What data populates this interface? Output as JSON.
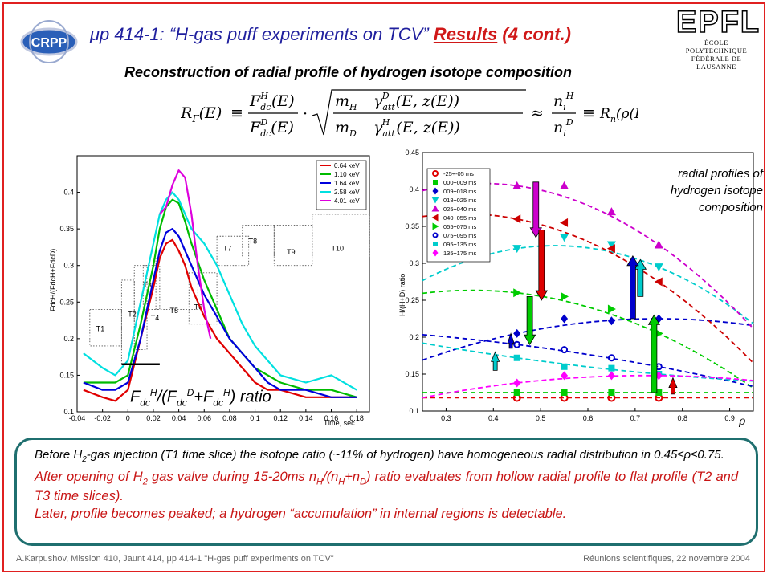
{
  "header": {
    "title_prefix": "μp 414-1: “H-gas puff experiments on TCV”",
    "title_results": "Results",
    "title_suffix": "(4 cont.)",
    "subtitle": "Reconstruction of radial profile of hydrogen isotope composition",
    "logo_crpp": "CRPP",
    "logo_epfl": "EPFL",
    "logo_epfl_sub1": "ÉCOLE POLYTECHNIQUE",
    "logo_epfl_sub2": "FÉDÉRALE DE LAUSANNE"
  },
  "formula": {
    "lhs": "RΓ(E) ≡",
    "middle": "· √( mH γattD(E,z(E)) / mD γattH(E,z(E)) ) ≈",
    "rhs": "≡ Rn(ρ(E))"
  },
  "colors": {
    "title": "#1f1f9e",
    "accent_red": "#d01818",
    "note_border": "#1f6f6f",
    "frame": "#e02020"
  },
  "chart_data": [
    {
      "type": "line",
      "title": "",
      "xlabel": "Time, sec",
      "ylabel": "FdcH/(FdcH+FdcD)",
      "xlim": [
        -0.04,
        0.19
      ],
      "ylim": [
        0.1,
        0.45
      ],
      "xticks": [
        "-0.04",
        "-0.02",
        "0",
        "0.02",
        "0.04",
        "0.06",
        "0.08",
        "0.1",
        "0.12",
        "0.14",
        "0.16",
        "0.18"
      ],
      "yticks": [
        "0.1",
        "0.15",
        "0.2",
        "0.25",
        "0.3",
        "0.35",
        "0.4"
      ],
      "overlay_label": "FdcH/(FdcD+FdcH) ratio",
      "time_slices": [
        "T1",
        "T2",
        "T3",
        "T4",
        "T5",
        "T6",
        "T7",
        "T8",
        "T9",
        "T10"
      ],
      "series": [
        {
          "name": "0.64 keV",
          "color": "#e00000",
          "x": [
            -0.035,
            -0.02,
            -0.01,
            0,
            0.01,
            0.02,
            0.025,
            0.03,
            0.035,
            0.04,
            0.045,
            0.05,
            0.06,
            0.07,
            0.08,
            0.09,
            0.1,
            0.11,
            0.12,
            0.14,
            0.16,
            0.18
          ],
          "values": [
            0.13,
            0.12,
            0.115,
            0.13,
            0.2,
            0.27,
            0.31,
            0.33,
            0.335,
            0.32,
            0.3,
            0.27,
            0.23,
            0.2,
            0.18,
            0.16,
            0.14,
            0.13,
            0.13,
            0.12,
            0.12,
            0.12
          ]
        },
        {
          "name": "1.10 keV",
          "color": "#00bb00",
          "x": [
            -0.035,
            -0.02,
            -0.01,
            0,
            0.01,
            0.02,
            0.025,
            0.03,
            0.035,
            0.04,
            0.045,
            0.05,
            0.06,
            0.07,
            0.08,
            0.09,
            0.1,
            0.11,
            0.12,
            0.14,
            0.16,
            0.18
          ],
          "values": [
            0.14,
            0.14,
            0.14,
            0.15,
            0.22,
            0.3,
            0.35,
            0.38,
            0.39,
            0.385,
            0.36,
            0.33,
            0.28,
            0.24,
            0.2,
            0.18,
            0.16,
            0.15,
            0.14,
            0.13,
            0.13,
            0.12
          ]
        },
        {
          "name": "1.64 keV",
          "color": "#0000dd",
          "x": [
            -0.035,
            -0.02,
            -0.01,
            0,
            0.01,
            0.02,
            0.025,
            0.03,
            0.035,
            0.04,
            0.045,
            0.05,
            0.06,
            0.07,
            0.08,
            0.09,
            0.1,
            0.11,
            0.12,
            0.14,
            0.16,
            0.18
          ],
          "values": [
            0.14,
            0.13,
            0.13,
            0.14,
            0.2,
            0.28,
            0.32,
            0.345,
            0.35,
            0.34,
            0.32,
            0.3,
            0.26,
            0.23,
            0.2,
            0.18,
            0.16,
            0.14,
            0.13,
            0.13,
            0.12,
            0.12
          ]
        },
        {
          "name": "2.58 keV",
          "color": "#00e0e0",
          "x": [
            -0.035,
            -0.02,
            -0.01,
            0,
            0.01,
            0.02,
            0.025,
            0.03,
            0.035,
            0.04,
            0.045,
            0.05,
            0.06,
            0.07,
            0.08,
            0.09,
            0.1,
            0.11,
            0.12,
            0.14,
            0.16,
            0.18
          ],
          "values": [
            0.18,
            0.16,
            0.15,
            0.17,
            0.25,
            0.33,
            0.37,
            0.39,
            0.4,
            0.39,
            0.37,
            0.35,
            0.33,
            0.3,
            0.26,
            0.22,
            0.19,
            0.17,
            0.15,
            0.14,
            0.15,
            0.13
          ]
        },
        {
          "name": "4.01 keV",
          "color": "#dd00dd",
          "x": [
            0.025,
            0.03,
            0.035,
            0.04,
            0.045,
            0.05,
            0.055,
            0.06,
            0.065
          ],
          "values": [
            0.37,
            0.38,
            0.41,
            0.43,
            0.42,
            0.37,
            0.3,
            0.24,
            0.2
          ]
        }
      ]
    },
    {
      "type": "scatter",
      "title": "",
      "xlabel": "ρ",
      "ylabel": "H/(H+D) ratio",
      "xlim": [
        0.25,
        0.95
      ],
      "ylim": [
        0.1,
        0.45
      ],
      "xticks": [
        "0.3",
        "0.4",
        "0.5",
        "0.6",
        "0.7",
        "0.8",
        "0.9"
      ],
      "yticks": [
        "0.1",
        "0.15",
        "0.2",
        "0.25",
        "0.3",
        "0.35",
        "0.4",
        "0.45"
      ],
      "annotation": [
        "radial profiles of",
        "hydrogen isotope",
        "composition"
      ],
      "series": [
        {
          "name": "-25÷-05 ms",
          "color": "#e00000",
          "marker": "circle",
          "x": [
            0.45,
            0.55,
            0.65,
            0.75
          ],
          "values": [
            0.118,
            0.118,
            0.118,
            0.118
          ]
        },
        {
          "name": "000÷009 ms",
          "color": "#00cc00",
          "marker": "square",
          "x": [
            0.45,
            0.55,
            0.65,
            0.75
          ],
          "values": [
            0.125,
            0.125,
            0.125,
            0.125
          ]
        },
        {
          "name": "009÷018 ms",
          "color": "#0000cc",
          "marker": "diamond",
          "x": [
            0.45,
            0.55,
            0.65,
            0.75
          ],
          "values": [
            0.205,
            0.225,
            0.222,
            0.225
          ]
        },
        {
          "name": "018÷025 ms",
          "color": "#00cccc",
          "marker": "triangle-down",
          "x": [
            0.45,
            0.55,
            0.65,
            0.75
          ],
          "values": [
            0.32,
            0.335,
            0.325,
            0.295
          ]
        },
        {
          "name": "025÷040 ms",
          "color": "#cc00cc",
          "marker": "triangle-up",
          "x": [
            0.45,
            0.55,
            0.65,
            0.75
          ],
          "values": [
            0.405,
            0.405,
            0.37,
            0.325
          ]
        },
        {
          "name": "040÷055 ms",
          "color": "#cc0000",
          "marker": "triangle-left",
          "x": [
            0.45,
            0.55,
            0.65,
            0.75
          ],
          "values": [
            0.36,
            0.355,
            0.32,
            0.275
          ]
        },
        {
          "name": "055÷075 ms",
          "color": "#00cc00",
          "marker": "triangle-right",
          "x": [
            0.45,
            0.55,
            0.65,
            0.75
          ],
          "values": [
            0.26,
            0.255,
            0.238,
            0.205
          ]
        },
        {
          "name": "075÷095 ms",
          "color": "#0000cc",
          "marker": "circle-open",
          "x": [
            0.45,
            0.55,
            0.65,
            0.75
          ],
          "values": [
            0.19,
            0.183,
            0.172,
            0.16
          ]
        },
        {
          "name": "095÷135 ms",
          "color": "#00cccc",
          "marker": "square",
          "x": [
            0.45,
            0.55,
            0.65,
            0.75
          ],
          "values": [
            0.172,
            0.16,
            0.158,
            0.15
          ]
        },
        {
          "name": "135÷175 ms",
          "color": "#ff00ff",
          "marker": "diamond",
          "x": [
            0.45,
            0.55,
            0.65,
            0.75
          ],
          "values": [
            0.138,
            0.148,
            0.148,
            0.148
          ]
        }
      ]
    }
  ],
  "notes": {
    "p1_a": "Before H",
    "p1_sub": "2",
    "p1_b": "-gas injection (T1 time slice) the isotope ratio (~11% of hydrogen) have homogeneous radial distribution in 0.45≤ρ≤0.75.",
    "p2_a": "After opening of H",
    "p2_sub1": "2",
    "p2_b": " gas valve during 15-20ms n",
    "p2_sub2": "H",
    "p2_c": "/(n",
    "p2_sub3": "H",
    "p2_d": "+n",
    "p2_sub4": "D",
    "p2_e": ") ratio evaluates from hollow radial profile to flat profile (T2 and T3 time slices).",
    "p3": "Later, profile becomes peaked; a hydrogen “accumulation” in internal regions is detectable."
  },
  "footer": {
    "left": "A.Karpushov, Mission 410, Jaunt 414, μp 414-1 \"H-gas puff experiments on TCV\"",
    "right": "Réunions scientifiques, 22 novembre 2004"
  }
}
